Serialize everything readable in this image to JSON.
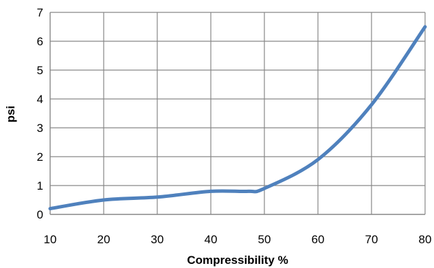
{
  "chart_data": {
    "type": "line",
    "title": "",
    "xlabel": "Compressibility %",
    "ylabel": "psi",
    "xlim": [
      10,
      80
    ],
    "ylim": [
      0,
      7
    ],
    "xticks": [
      "10",
      "20",
      "30",
      "40",
      "50",
      "60",
      "70",
      "80"
    ],
    "yticks": [
      "0",
      "1",
      "2",
      "3",
      "4",
      "5",
      "6",
      "7"
    ],
    "grid": true,
    "smooth": true,
    "series_color": "#4f81bd",
    "grid_color": "#878787",
    "series": [
      {
        "x": [
          10,
          20,
          30,
          40,
          47,
          50,
          60,
          70,
          80
        ],
        "y": [
          0.2,
          0.5,
          0.6,
          0.8,
          0.8,
          0.9,
          1.9,
          3.8,
          6.5
        ]
      }
    ]
  }
}
